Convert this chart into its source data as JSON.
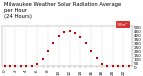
{
  "title": "Milwaukee Weather Solar Radiation Average\nper Hour\n(24 Hours)",
  "hours": [
    0,
    1,
    2,
    3,
    4,
    5,
    6,
    7,
    8,
    9,
    10,
    11,
    12,
    13,
    14,
    15,
    16,
    17,
    18,
    19,
    20,
    21,
    22,
    23
  ],
  "values": [
    0,
    0,
    0,
    0,
    0,
    2,
    25,
    95,
    190,
    295,
    380,
    430,
    445,
    420,
    370,
    290,
    195,
    105,
    30,
    5,
    0,
    0,
    0,
    0
  ],
  "dot_color": "#cc0000",
  "bg_color": "#ffffff",
  "grid_color": "#bbbbbb",
  "ylim": [
    0,
    500
  ],
  "ytick_values": [
    0,
    50,
    100,
    150,
    200,
    250,
    300,
    350,
    400,
    450,
    500
  ],
  "ytick_labels": [
    "0",
    "50",
    "100",
    "150",
    "200",
    "250",
    "300",
    "350",
    "400",
    "450",
    "500"
  ],
  "legend_color": "#cc0000",
  "legend_label": "W/m²",
  "title_fontsize": 3.8,
  "tick_fontsize": 3.0,
  "dot_size": 1.8,
  "spine_color": "#888888"
}
